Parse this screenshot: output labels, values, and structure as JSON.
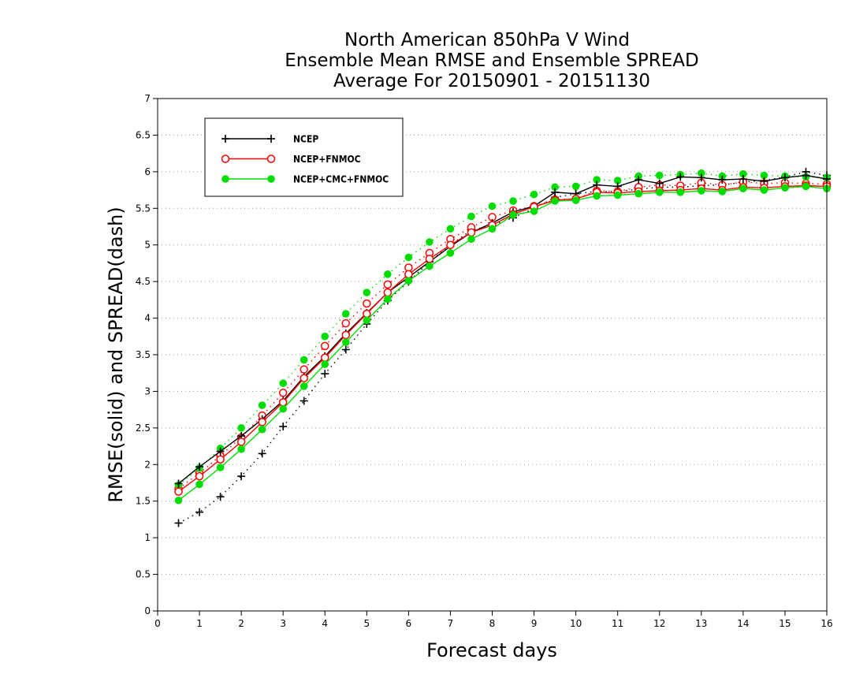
{
  "chart_data": {
    "type": "line",
    "title": [
      "North American 850hPa V Wind",
      "Ensemble Mean RMSE and Ensemble SPREAD",
      "Average For 20150901 - 20151130"
    ],
    "xlabel": "Forecast days",
    "ylabel": "RMSE(solid) and SPREAD(dash)",
    "xlim": [
      0,
      16
    ],
    "ylim": [
      0,
      7
    ],
    "xticks": [
      0,
      1,
      2,
      3,
      4,
      5,
      6,
      7,
      8,
      9,
      10,
      11,
      12,
      13,
      14,
      15,
      16
    ],
    "yticks": [
      0,
      0.5,
      1,
      1.5,
      2,
      2.5,
      3,
      3.5,
      4,
      4.5,
      5,
      5.5,
      6,
      6.5,
      7
    ],
    "grid": "horizontal dotted",
    "legend_position": "top-left",
    "x": [
      0.5,
      1,
      1.5,
      2,
      2.5,
      3,
      3.5,
      4,
      4.5,
      5,
      5.5,
      6,
      6.5,
      7,
      7.5,
      8,
      8.5,
      9,
      9.5,
      10,
      10.5,
      11,
      11.5,
      12,
      12.5,
      13,
      13.5,
      14,
      14.5,
      15,
      15.5,
      16
    ],
    "series": [
      {
        "name": "NCEP",
        "color": "#000000",
        "marker": "plus",
        "rmse": [
          1.74,
          1.97,
          2.18,
          2.39,
          2.62,
          2.87,
          3.2,
          3.48,
          3.79,
          4.07,
          4.35,
          4.56,
          4.77,
          4.98,
          5.17,
          5.3,
          5.45,
          5.53,
          5.72,
          5.7,
          5.82,
          5.8,
          5.89,
          5.84,
          5.93,
          5.92,
          5.89,
          5.9,
          5.87,
          5.92,
          5.95,
          5.9
        ],
        "spread": [
          1.2,
          1.35,
          1.56,
          1.84,
          2.15,
          2.52,
          2.87,
          3.24,
          3.57,
          3.92,
          4.24,
          4.5,
          4.77,
          5.0,
          5.2,
          5.27,
          5.37,
          5.5,
          5.65,
          5.7,
          5.73,
          5.73,
          5.76,
          5.79,
          5.79,
          5.81,
          5.82,
          5.86,
          5.88,
          5.93,
          6.0,
          5.95
        ]
      },
      {
        "name": "NCEP+FNMOC",
        "color": "#ff0000",
        "marker": "open-circle",
        "rmse": [
          1.63,
          1.84,
          2.07,
          2.31,
          2.58,
          2.85,
          3.18,
          3.46,
          3.77,
          4.06,
          4.35,
          4.6,
          4.81,
          5.0,
          5.17,
          5.27,
          5.42,
          5.52,
          5.61,
          5.63,
          5.72,
          5.71,
          5.73,
          5.74,
          5.75,
          5.77,
          5.75,
          5.79,
          5.78,
          5.8,
          5.81,
          5.8
        ],
        "spread": [
          1.67,
          1.88,
          2.12,
          2.37,
          2.67,
          2.98,
          3.3,
          3.62,
          3.93,
          4.2,
          4.46,
          4.69,
          4.89,
          5.08,
          5.24,
          5.38,
          5.47,
          5.53,
          5.62,
          5.63,
          5.74,
          5.73,
          5.79,
          5.82,
          5.81,
          5.85,
          5.82,
          5.86,
          5.84,
          5.85,
          5.84,
          5.83
        ]
      },
      {
        "name": "NCEP+CMC+FNMOC",
        "color": "#00dd00",
        "marker": "filled-circle",
        "rmse": [
          1.51,
          1.73,
          1.96,
          2.21,
          2.48,
          2.76,
          3.07,
          3.37,
          3.67,
          3.97,
          4.26,
          4.51,
          4.71,
          4.89,
          5.08,
          5.22,
          5.41,
          5.46,
          5.6,
          5.61,
          5.67,
          5.68,
          5.7,
          5.72,
          5.72,
          5.74,
          5.73,
          5.77,
          5.75,
          5.78,
          5.8,
          5.77
        ],
        "spread": [
          1.72,
          1.95,
          2.22,
          2.5,
          2.81,
          3.11,
          3.43,
          3.75,
          4.06,
          4.35,
          4.6,
          4.83,
          5.04,
          5.22,
          5.39,
          5.53,
          5.6,
          5.69,
          5.79,
          5.8,
          5.89,
          5.88,
          5.94,
          5.95,
          5.96,
          5.98,
          5.94,
          5.97,
          5.95,
          5.94,
          5.93,
          5.92
        ]
      }
    ]
  }
}
